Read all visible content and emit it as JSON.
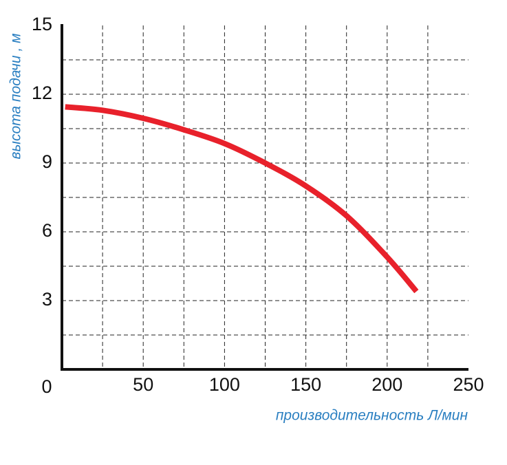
{
  "chart_data": {
    "type": "line",
    "x_label": "производительность Л/мин",
    "y_label": "высота подачи , м",
    "xlim": [
      0,
      250
    ],
    "ylim": [
      0,
      15
    ],
    "xticks": [
      50,
      100,
      150,
      200,
      250
    ],
    "yticks": [
      0,
      3,
      6,
      9,
      12,
      15
    ],
    "xgrid": [
      25,
      50,
      75,
      100,
      125,
      150,
      175,
      200,
      225
    ],
    "ygrid": [
      1.5,
      3,
      4.5,
      6,
      7.5,
      9,
      10.5,
      12,
      13.5
    ],
    "grid": true,
    "series": [
      {
        "color": "#e8212b",
        "x": [
          2,
          25,
          50,
          75,
          100,
          125,
          150,
          175,
          200,
          218
        ],
        "values": [
          11.45,
          11.3,
          10.95,
          10.45,
          9.85,
          9.0,
          8.0,
          6.7,
          4.9,
          3.4
        ]
      }
    ]
  }
}
